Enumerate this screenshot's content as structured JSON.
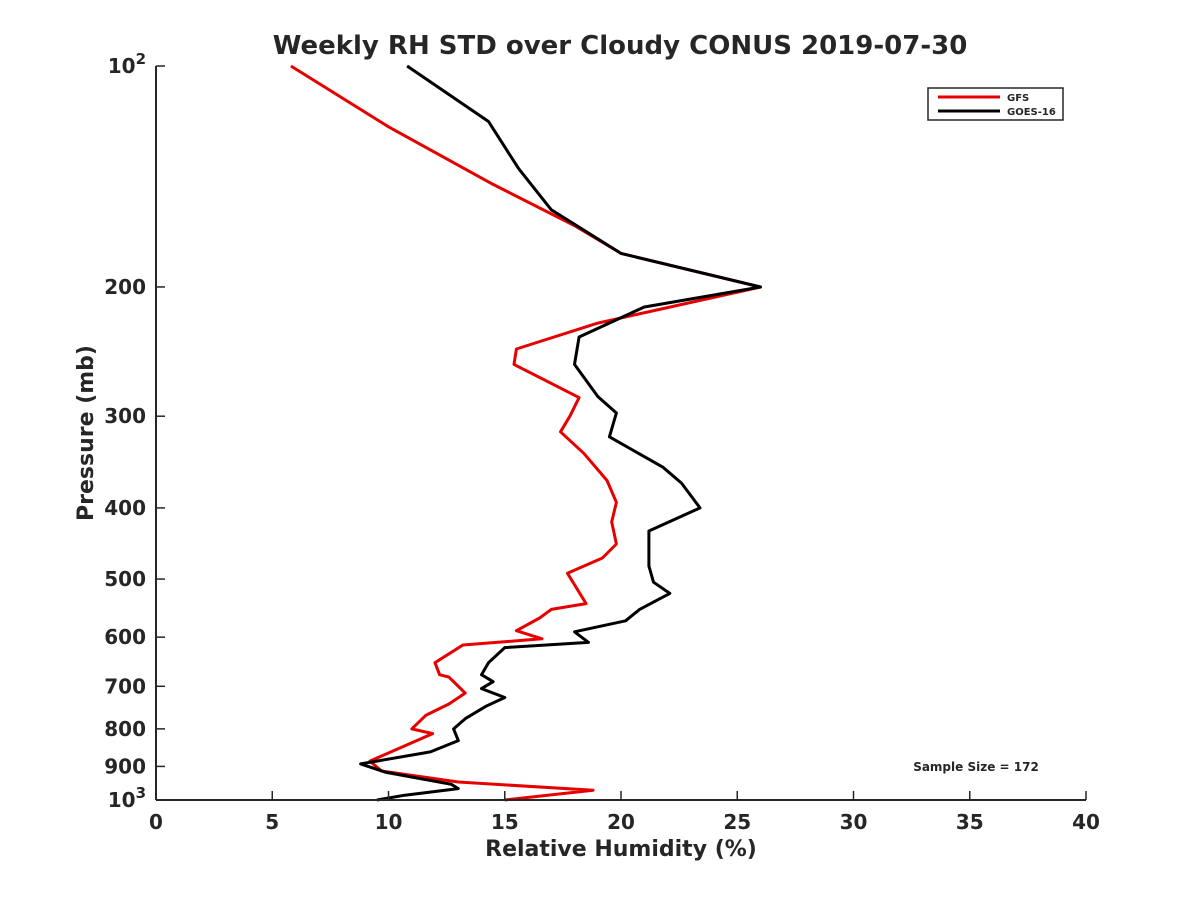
{
  "chart_data": {
    "type": "line",
    "title": "Weekly RH STD over Cloudy CONUS 2019-07-30",
    "xlabel": "Relative Humidity (%)",
    "ylabel": "Pressure (mb)",
    "xlim": [
      0,
      40
    ],
    "ylim": [
      100,
      1000
    ],
    "y_scale": "log",
    "y_reversed": true,
    "grid": false,
    "legend_position": "top-right",
    "annotation": "Sample Size = 172",
    "x_ticks": [
      0,
      5,
      10,
      15,
      20,
      25,
      30,
      35,
      40
    ],
    "x_tick_labels": [
      "0",
      "5",
      "10",
      "15",
      "20",
      "25",
      "30",
      "35",
      "40"
    ],
    "y_ticks": [
      100,
      200,
      300,
      400,
      500,
      600,
      700,
      800,
      900,
      1000
    ],
    "y_tick_labels": [
      {
        "base": "10",
        "exp": "2"
      },
      {
        "base": "200",
        "exp": ""
      },
      {
        "base": "300",
        "exp": ""
      },
      {
        "base": "400",
        "exp": ""
      },
      {
        "base": "500",
        "exp": ""
      },
      {
        "base": "600",
        "exp": ""
      },
      {
        "base": "700",
        "exp": ""
      },
      {
        "base": "800",
        "exp": ""
      },
      {
        "base": "900",
        "exp": ""
      },
      {
        "base": "10",
        "exp": "3"
      }
    ],
    "series": [
      {
        "name": "GFS",
        "color": "#e60000",
        "points": [
          [
            5.8,
            100
          ],
          [
            10,
            121
          ],
          [
            14.5,
            145
          ],
          [
            18,
            165
          ],
          [
            20,
            180
          ],
          [
            26,
            200
          ],
          [
            19,
            224
          ],
          [
            15.5,
            243
          ],
          [
            15.4,
            255
          ],
          [
            18.2,
            283
          ],
          [
            17.8,
            300
          ],
          [
            17.4,
            315
          ],
          [
            18.4,
            337
          ],
          [
            19.4,
            367
          ],
          [
            19.8,
            393
          ],
          [
            19.6,
            418
          ],
          [
            19.8,
            448
          ],
          [
            19.2,
            468
          ],
          [
            17.7,
            491
          ],
          [
            18.5,
            540
          ],
          [
            17,
            550
          ],
          [
            16.5,
            565
          ],
          [
            15.5,
            588
          ],
          [
            16.6,
            603
          ],
          [
            13.2,
            615
          ],
          [
            12,
            650
          ],
          [
            12.2,
            675
          ],
          [
            12.6,
            680
          ],
          [
            13.3,
            715
          ],
          [
            12.6,
            740
          ],
          [
            11.6,
            767
          ],
          [
            11,
            800
          ],
          [
            11.9,
            812
          ],
          [
            9.2,
            885
          ],
          [
            9.7,
            913
          ],
          [
            13,
            945
          ],
          [
            18.8,
            970
          ],
          [
            15,
            1000
          ]
        ]
      },
      {
        "name": "GOES-16",
        "color": "#000000",
        "points": [
          [
            10.8,
            100
          ],
          [
            14.3,
            119
          ],
          [
            15.6,
            138
          ],
          [
            17,
            157
          ],
          [
            20,
            180
          ],
          [
            26,
            200
          ],
          [
            21,
            213
          ],
          [
            18.2,
            234
          ],
          [
            18,
            255
          ],
          [
            19,
            282
          ],
          [
            19.8,
            297
          ],
          [
            19.5,
            320
          ],
          [
            21.8,
            352
          ],
          [
            22.6,
            370
          ],
          [
            23.4,
            400
          ],
          [
            21.2,
            430
          ],
          [
            21.2,
            480
          ],
          [
            21.4,
            505
          ],
          [
            22.1,
            523
          ],
          [
            20.8,
            550
          ],
          [
            20.2,
            570
          ],
          [
            18,
            590
          ],
          [
            18.6,
            610
          ],
          [
            15,
            620
          ],
          [
            14.3,
            650
          ],
          [
            14,
            675
          ],
          [
            14.5,
            690
          ],
          [
            14,
            705
          ],
          [
            15,
            725
          ],
          [
            14.2,
            745
          ],
          [
            13.3,
            775
          ],
          [
            12.8,
            800
          ],
          [
            13,
            830
          ],
          [
            11.8,
            860
          ],
          [
            8.8,
            893
          ],
          [
            9.9,
            917
          ],
          [
            12.7,
            952
          ],
          [
            13,
            965
          ],
          [
            10.7,
            985
          ],
          [
            9.5,
            1000
          ]
        ]
      }
    ]
  }
}
